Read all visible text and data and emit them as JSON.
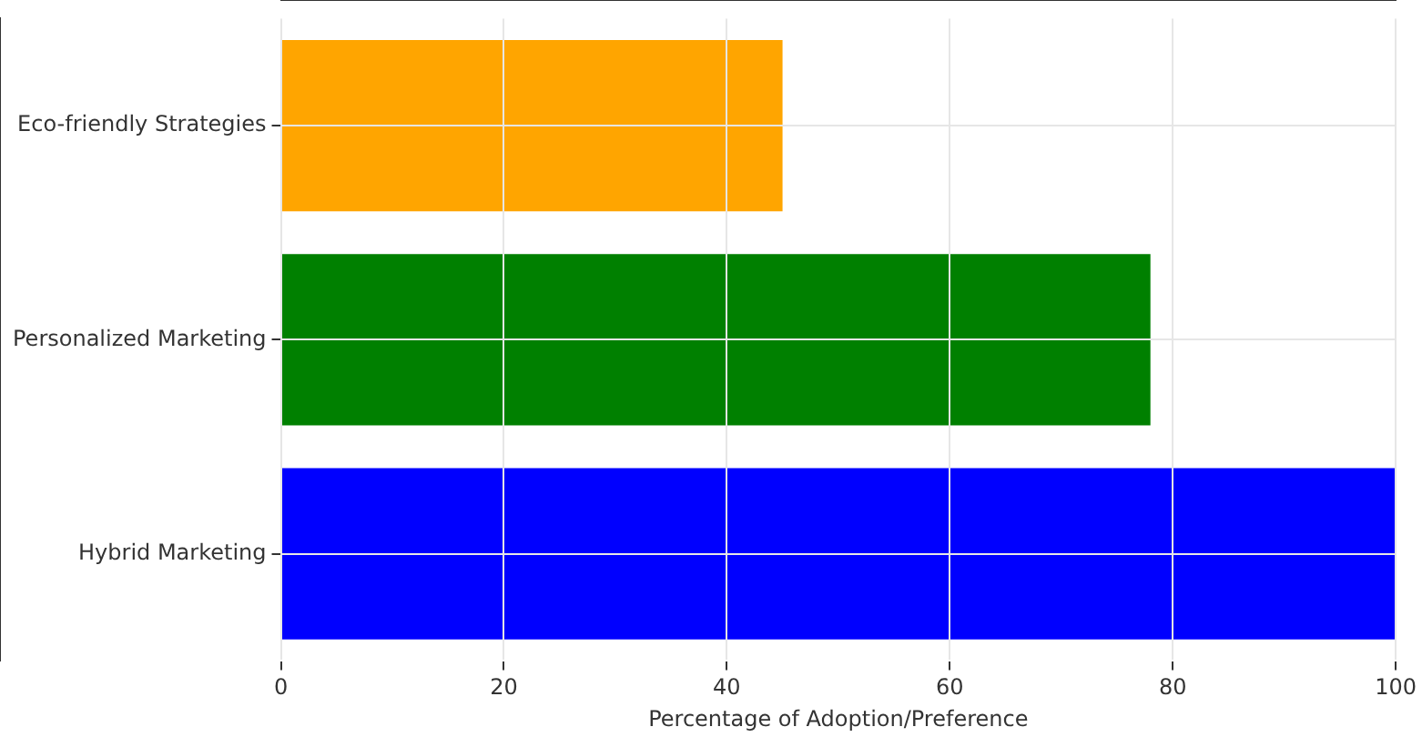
{
  "chart_data": {
    "type": "bar",
    "orientation": "horizontal",
    "xlabel": "Percentage of Adoption/Preference",
    "categories": [
      "Eco-friendly Strategies",
      "Personalized Marketing",
      "Hybrid Marketing"
    ],
    "values": [
      45,
      78,
      100
    ],
    "colors": [
      "#ffa500",
      "#008000",
      "#0000ff"
    ],
    "xlim": [
      0,
      100
    ],
    "xticks": [
      0,
      20,
      40,
      60,
      80,
      100
    ],
    "grid": true
  }
}
